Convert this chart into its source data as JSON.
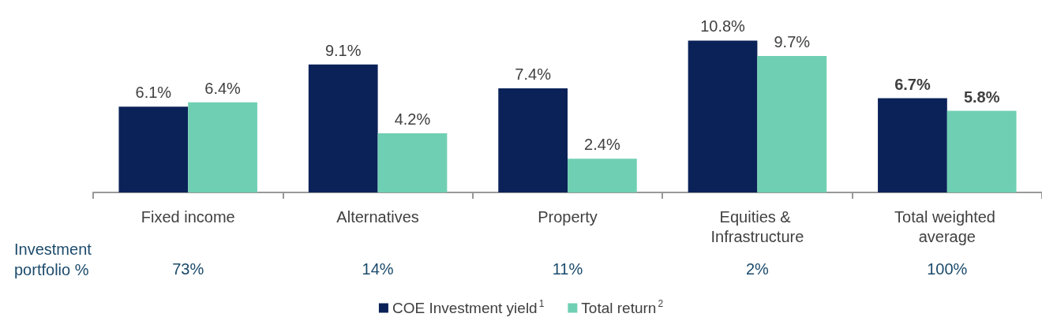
{
  "chart_data": {
    "type": "bar",
    "categories": [
      "Fixed income",
      "Alternatives",
      "Property",
      "Equities & Infrastructure",
      "Total weighted average"
    ],
    "series": [
      {
        "name": "COE Investment yield$^{1}$",
        "color": "#0b2259",
        "values": [
          6.1,
          9.1,
          7.4,
          10.8,
          6.7
        ],
        "value_labels": [
          "6.1%",
          "9.1%",
          "7.4%",
          "10.8%",
          "6.7%"
        ]
      },
      {
        "name": "Total return$^{2}$",
        "color": "#6fcfb3",
        "values": [
          6.4,
          4.2,
          2.4,
          9.7,
          5.8
        ],
        "value_labels": [
          "6.4%",
          "4.2%",
          "2.4%",
          "9.7%",
          "5.8%"
        ]
      }
    ],
    "legend": "bottom",
    "grid": false,
    "annotations": [
      "Investment portfolio %",
      "73%",
      "14%",
      "11%",
      "2%",
      "100%"
    ]
  }
}
